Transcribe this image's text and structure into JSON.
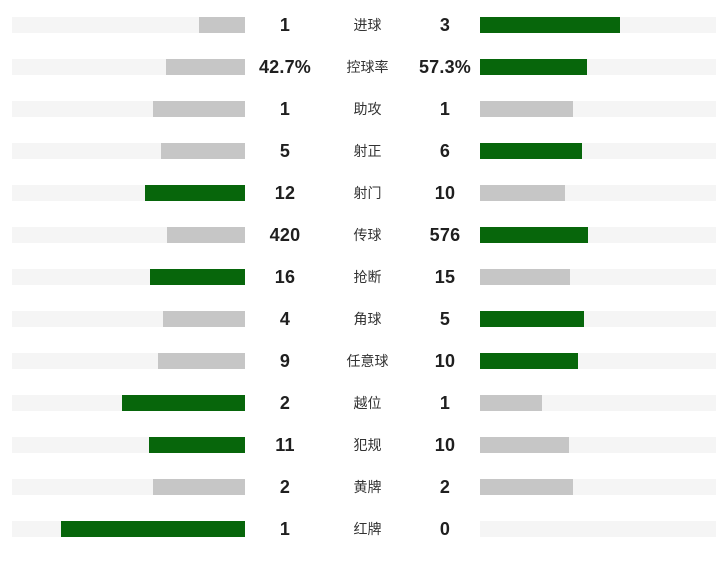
{
  "chart_data": {
    "type": "bar",
    "title": "",
    "description": "Head-to-head football match statistics, home (left) vs away (right); bar length proportional to share of row total, leading side highlighted",
    "legend_position": "none",
    "grid": false,
    "bar_fill_ratio": 0.79,
    "colors": {
      "leading_bar": "#07660b",
      "trailing_bar": "#c6c6c6",
      "track": "#f5f5f5",
      "value_text": "#1f1f1f",
      "label_text": "#333333",
      "background": "#ffffff"
    },
    "rows": [
      {
        "label": "进球",
        "home_display": "1",
        "away_display": "3",
        "home_value": 1,
        "away_value": 3
      },
      {
        "label": "控球率",
        "home_display": "42.7%",
        "away_display": "57.3%",
        "home_value": 42.7,
        "away_value": 57.3
      },
      {
        "label": "助攻",
        "home_display": "1",
        "away_display": "1",
        "home_value": 1,
        "away_value": 1
      },
      {
        "label": "射正",
        "home_display": "5",
        "away_display": "6",
        "home_value": 5,
        "away_value": 6
      },
      {
        "label": "射门",
        "home_display": "12",
        "away_display": "10",
        "home_value": 12,
        "away_value": 10
      },
      {
        "label": "传球",
        "home_display": "420",
        "away_display": "576",
        "home_value": 420,
        "away_value": 576
      },
      {
        "label": "抢断",
        "home_display": "16",
        "away_display": "15",
        "home_value": 16,
        "away_value": 15
      },
      {
        "label": "角球",
        "home_display": "4",
        "away_display": "5",
        "home_value": 4,
        "away_value": 5
      },
      {
        "label": "任意球",
        "home_display": "9",
        "away_display": "10",
        "home_value": 9,
        "away_value": 10
      },
      {
        "label": "越位",
        "home_display": "2",
        "away_display": "1",
        "home_value": 2,
        "away_value": 1
      },
      {
        "label": "犯规",
        "home_display": "11",
        "away_display": "10",
        "home_value": 11,
        "away_value": 10
      },
      {
        "label": "黄牌",
        "home_display": "2",
        "away_display": "2",
        "home_value": 2,
        "away_value": 2
      },
      {
        "label": "红牌",
        "home_display": "1",
        "away_display": "0",
        "home_value": 1,
        "away_value": 0
      }
    ]
  }
}
